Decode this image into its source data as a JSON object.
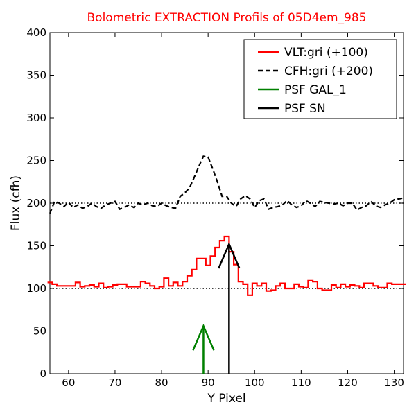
{
  "chart_data": {
    "type": "line",
    "title": "Bolometric EXTRACTION Profils of 05D4em_985",
    "xlabel": "Y Pixel",
    "ylabel": "Flux (cfh)",
    "xlim": [
      56,
      132
    ],
    "ylim": [
      0,
      400
    ],
    "xticks": [
      60,
      70,
      80,
      90,
      100,
      110,
      120,
      130
    ],
    "yticks": [
      0,
      50,
      100,
      150,
      200,
      250,
      300,
      350,
      400
    ],
    "grid": false,
    "legend_position": "top-right",
    "reference_lines": [
      {
        "y": 100,
        "style": "dotted",
        "color": "#000000"
      },
      {
        "y": 200,
        "style": "dotted",
        "color": "#000000"
      }
    ],
    "series": [
      {
        "name": "VLT:gri (+100)",
        "color": "#ff0000",
        "style": "steps",
        "x": [
          56,
          57,
          58,
          59,
          60,
          61,
          62,
          63,
          64,
          65,
          66,
          67,
          68,
          69,
          70,
          71,
          72,
          73,
          74,
          75,
          76,
          77,
          78,
          79,
          80,
          81,
          82,
          83,
          84,
          85,
          86,
          87,
          88,
          89,
          90,
          91,
          92,
          93,
          94,
          95,
          96,
          97,
          98,
          99,
          100,
          101,
          102,
          103,
          104,
          105,
          106,
          107,
          108,
          109,
          110,
          111,
          112,
          113,
          114,
          115,
          116,
          117,
          118,
          119,
          120,
          121,
          122,
          123,
          124,
          125,
          126,
          127,
          128,
          129,
          130,
          131,
          132
        ],
        "y": [
          107,
          105,
          103,
          103,
          103,
          103,
          107,
          102,
          103,
          104,
          102,
          106,
          101,
          102,
          104,
          105,
          105,
          102,
          102,
          102,
          108,
          106,
          103,
          100,
          102,
          112,
          103,
          107,
          103,
          108,
          115,
          122,
          135,
          135,
          127,
          138,
          148,
          156,
          161,
          143,
          128,
          108,
          105,
          92,
          106,
          103,
          106,
          97,
          98,
          103,
          106,
          100,
          100,
          105,
          102,
          101,
          109,
          108,
          100,
          98,
          98,
          104,
          101,
          105,
          102,
          104,
          103,
          101,
          106,
          106,
          103,
          101,
          101,
          106,
          105,
          105,
          105
        ]
      },
      {
        "name": "CFH:gri (+200)",
        "color": "#000000",
        "style": "dashed",
        "x": [
          56,
          57,
          58,
          59,
          60,
          61,
          62,
          63,
          64,
          65,
          66,
          67,
          68,
          69,
          70,
          71,
          72,
          73,
          74,
          75,
          76,
          77,
          78,
          79,
          80,
          81,
          82,
          83,
          84,
          85,
          86,
          87,
          88,
          89,
          90,
          91,
          92,
          93,
          94,
          95,
          96,
          97,
          98,
          99,
          100,
          101,
          102,
          103,
          104,
          105,
          106,
          107,
          108,
          109,
          110,
          111,
          112,
          113,
          114,
          115,
          116,
          117,
          118,
          119,
          120,
          121,
          122,
          123,
          124,
          125,
          126,
          127,
          128,
          129,
          130,
          131,
          132
        ],
        "y": [
          188,
          202,
          200,
          196,
          201,
          195,
          198,
          194,
          196,
          200,
          196,
          194,
          198,
          200,
          202,
          193,
          195,
          198,
          195,
          200,
          198,
          200,
          197,
          196,
          200,
          197,
          195,
          194,
          208,
          212,
          218,
          230,
          243,
          255,
          254,
          240,
          225,
          208,
          208,
          200,
          196,
          205,
          209,
          205,
          195,
          203,
          205,
          193,
          195,
          196,
          198,
          203,
          198,
          195,
          197,
          203,
          200,
          196,
          202,
          201,
          200,
          199,
          200,
          197,
          200,
          200,
          192,
          195,
          197,
          202,
          197,
          195,
          198,
          200,
          204,
          205,
          206
        ]
      }
    ],
    "markers": [
      {
        "name": "PSF GAL_1",
        "x": 89,
        "y_from": 0,
        "y_to": 56,
        "color": "#008000"
      },
      {
        "name": "PSF SN",
        "x": 94.5,
        "y_from": 0,
        "y_to": 152,
        "color": "#000000"
      }
    ]
  }
}
